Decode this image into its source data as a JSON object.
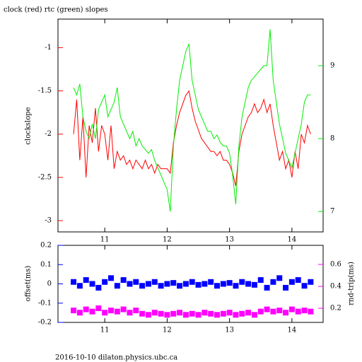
{
  "chart_data": [
    {
      "type": "line",
      "title": "clock (red) rtc (green) slopes",
      "ylabel": "clockslope",
      "xlim": [
        10.25,
        14.5
      ],
      "xticks": [
        11,
        12,
        13,
        14
      ],
      "ylim": [
        -3.13,
        -0.67
      ],
      "yticks": [
        -3,
        -2.5,
        -2,
        -1.5,
        -1
      ],
      "y2lim": [
        6.72,
        9.64
      ],
      "y2ticks": [
        7,
        8,
        9
      ],
      "x": [
        10.5,
        10.55,
        10.6,
        10.65,
        10.7,
        10.75,
        10.8,
        10.85,
        10.9,
        10.95,
        11,
        11.05,
        11.1,
        11.15,
        11.2,
        11.25,
        11.3,
        11.35,
        11.4,
        11.45,
        11.5,
        11.55,
        11.6,
        11.65,
        11.7,
        11.75,
        11.8,
        11.85,
        11.9,
        11.95,
        12,
        12.05,
        12.1,
        12.15,
        12.2,
        12.25,
        12.3,
        12.35,
        12.4,
        12.45,
        12.5,
        12.55,
        12.6,
        12.65,
        12.7,
        12.75,
        12.8,
        12.85,
        12.9,
        12.95,
        13,
        13.05,
        13.1,
        13.15,
        13.2,
        13.25,
        13.3,
        13.35,
        13.4,
        13.45,
        13.5,
        13.55,
        13.6,
        13.65,
        13.7,
        13.75,
        13.8,
        13.85,
        13.9,
        13.95,
        14,
        14.05,
        14.1,
        14.15,
        14.2,
        14.25,
        14.3
      ],
      "series": [
        {
          "color": "#ff0000",
          "values": [
            -2.0,
            -1.6,
            -2.3,
            -1.8,
            -2.5,
            -1.9,
            -2.1,
            -1.7,
            -2.2,
            -1.9,
            -2.0,
            -2.3,
            -1.9,
            -2.4,
            -2.2,
            -2.3,
            -2.25,
            -2.35,
            -2.3,
            -2.4,
            -2.3,
            -2.35,
            -2.4,
            -2.3,
            -2.4,
            -2.35,
            -2.45,
            -2.35,
            -2.4,
            -2.4,
            -2.4,
            -2.45,
            -2.1,
            -1.9,
            -1.75,
            -1.65,
            -1.55,
            -1.5,
            -1.7,
            -1.85,
            -1.95,
            -2.05,
            -2.1,
            -2.15,
            -2.2,
            -2.2,
            -2.25,
            -2.2,
            -2.3,
            -2.3,
            -2.35,
            -2.45,
            -2.6,
            -2.2,
            -2.0,
            -1.9,
            -1.8,
            -1.75,
            -1.65,
            -1.75,
            -1.7,
            -1.6,
            -1.75,
            -1.65,
            -1.9,
            -2.1,
            -2.3,
            -2.2,
            -2.4,
            -2.3,
            -2.5,
            -2.2,
            -2.4,
            -2.0,
            -2.1,
            -1.9,
            -2.0
          ]
        },
        {
          "color": "#00ee00",
          "axis": "y2",
          "values": [
            8.7,
            8.6,
            8.75,
            8.3,
            8.1,
            8.0,
            8.2,
            8.0,
            8.4,
            8.5,
            8.6,
            8.3,
            8.4,
            8.5,
            8.7,
            8.3,
            8.2,
            8.1,
            8.0,
            8.1,
            7.9,
            8.0,
            7.9,
            7.85,
            7.8,
            7.85,
            7.7,
            7.6,
            7.5,
            7.4,
            7.3,
            7.0,
            7.9,
            8.4,
            8.8,
            9.0,
            9.2,
            9.3,
            8.8,
            8.6,
            8.4,
            8.3,
            8.2,
            8.1,
            8.1,
            8.0,
            8.05,
            7.95,
            7.9,
            7.9,
            7.8,
            7.5,
            7.1,
            7.9,
            8.3,
            8.5,
            8.7,
            8.8,
            8.85,
            8.9,
            8.95,
            9.0,
            9.0,
            9.5,
            8.8,
            8.5,
            8.2,
            8.0,
            7.8,
            7.7,
            7.6,
            7.8,
            8.0,
            8.2,
            8.5,
            8.6,
            8.6
          ]
        }
      ]
    },
    {
      "type": "scatter",
      "ylabel": "offset(ms)",
      "y2label": "rnd-trip(ms)",
      "footer": "2016-10-10  dilaton.physics.ubc.ca",
      "xlim": [
        10.25,
        14.5
      ],
      "xticks": [
        11,
        12,
        13,
        14
      ],
      "ylim": [
        -0.2,
        0.2
      ],
      "yticks": [
        -0.2,
        -0.1,
        0,
        0.1,
        0.2
      ],
      "y2lim": [
        0.071,
        0.774
      ],
      "y2ticks": [
        0.2,
        0.4,
        0.6
      ],
      "x": [
        10.5,
        10.6,
        10.7,
        10.8,
        10.9,
        11,
        11.1,
        11.2,
        11.3,
        11.4,
        11.5,
        11.6,
        11.7,
        11.8,
        11.9,
        12,
        12.1,
        12.2,
        12.3,
        12.4,
        12.5,
        12.6,
        12.7,
        12.8,
        12.9,
        13,
        13.1,
        13.2,
        13.3,
        13.4,
        13.5,
        13.6,
        13.7,
        13.8,
        13.9,
        14,
        14.1,
        14.2,
        14.3
      ],
      "series": [
        {
          "color": "#0000ff",
          "values": [
            0.01,
            -0.01,
            0.02,
            0,
            -0.02,
            0.01,
            0.03,
            -0.01,
            0.02,
            0,
            0.01,
            -0.01,
            0,
            0.01,
            -0.01,
            0,
            0.005,
            -0.01,
            0,
            0.01,
            -0.005,
            0,
            0.01,
            -0.01,
            0,
            0.005,
            -0.01,
            0.01,
            0,
            -0.005,
            0.02,
            -0.02,
            0.01,
            0.03,
            -0.02,
            0.01,
            0.02,
            -0.01,
            0.01
          ]
        },
        {
          "color": "#ff00ff",
          "axis": "y2",
          "values": [
            0.18,
            0.16,
            0.19,
            0.17,
            0.2,
            0.16,
            0.18,
            0.17,
            0.19,
            0.16,
            0.18,
            0.15,
            0.14,
            0.16,
            0.15,
            0.14,
            0.15,
            0.16,
            0.14,
            0.15,
            0.14,
            0.16,
            0.15,
            0.14,
            0.15,
            0.16,
            0.14,
            0.15,
            0.16,
            0.14,
            0.17,
            0.19,
            0.17,
            0.18,
            0.16,
            0.19,
            0.17,
            0.18,
            0.17
          ]
        }
      ]
    }
  ]
}
